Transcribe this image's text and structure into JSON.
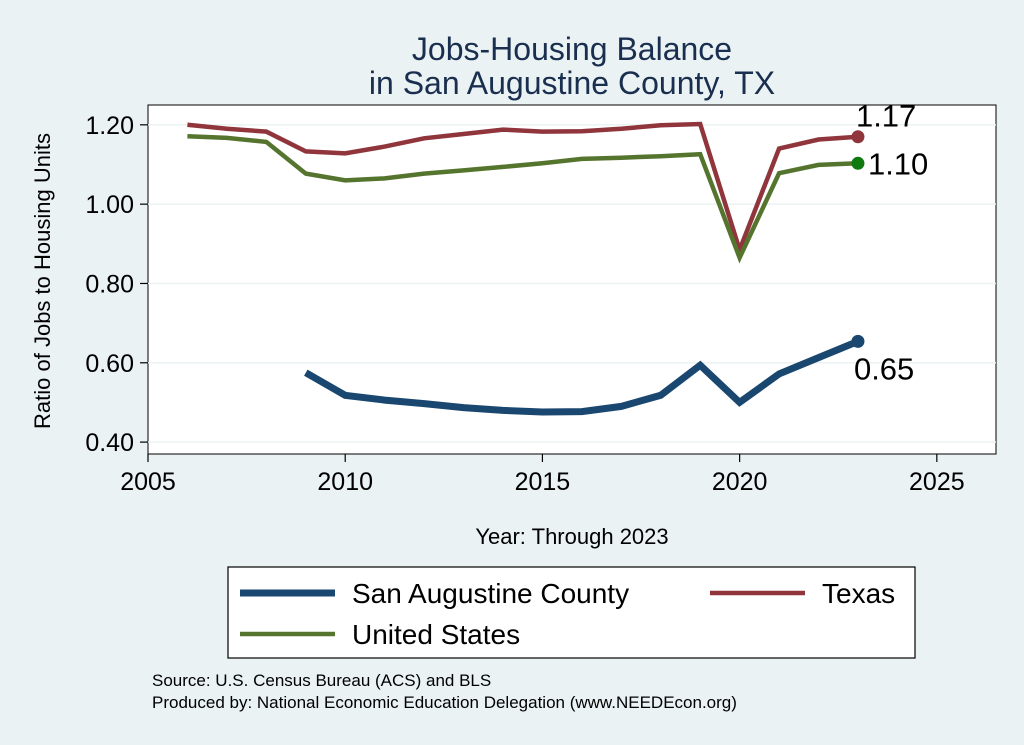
{
  "chart_data": {
    "type": "line",
    "title": [
      "Jobs-Housing Balance",
      "in San Augustine County, TX"
    ],
    "xlabel": "Year: Through 2023",
    "ylabel": "Ratio of Jobs to Housing Units",
    "xlim": [
      2005,
      2026.5
    ],
    "ylim": [
      0.37,
      1.25
    ],
    "xticks": [
      2005,
      2010,
      2015,
      2020,
      2025
    ],
    "yticks": [
      0.4,
      0.6,
      0.8,
      1.0,
      1.2
    ],
    "ytick_labels": [
      "0.40",
      "0.60",
      "0.80",
      "1.00",
      "1.20"
    ],
    "grid": true,
    "legend_position": "bottom",
    "series": [
      {
        "name": "San Augustine County",
        "color": "#1a476f",
        "x": [
          2009,
          2010,
          2011,
          2012,
          2013,
          2014,
          2015,
          2016,
          2017,
          2018,
          2019,
          2020,
          2021,
          2022,
          2023
        ],
        "values": [
          0.575,
          0.518,
          0.506,
          0.497,
          0.487,
          0.48,
          0.476,
          0.477,
          0.49,
          0.518,
          0.594,
          0.5,
          0.572,
          0.613,
          0.654
        ],
        "end_label": "0.65"
      },
      {
        "name": "Texas",
        "color": "#90353b",
        "x": [
          2006,
          2007,
          2008,
          2009,
          2010,
          2011,
          2012,
          2013,
          2014,
          2015,
          2016,
          2017,
          2018,
          2019,
          2020,
          2021,
          2022,
          2023
        ],
        "values": [
          1.2,
          1.19,
          1.183,
          1.133,
          1.128,
          1.145,
          1.166,
          1.177,
          1.188,
          1.183,
          1.184,
          1.19,
          1.199,
          1.202,
          0.885,
          1.14,
          1.163,
          1.17
        ],
        "end_label": "1.17"
      },
      {
        "name": "United States",
        "color": "#55752f",
        "x": [
          2006,
          2007,
          2008,
          2009,
          2010,
          2011,
          2012,
          2013,
          2014,
          2015,
          2016,
          2017,
          2018,
          2019,
          2020,
          2021,
          2022,
          2023
        ],
        "values": [
          1.171,
          1.167,
          1.157,
          1.077,
          1.06,
          1.065,
          1.077,
          1.085,
          1.094,
          1.103,
          1.114,
          1.117,
          1.121,
          1.126,
          0.865,
          1.078,
          1.099,
          1.103
        ],
        "end_label": "1.10",
        "end_marker_color": "#0f7a0f"
      }
    ],
    "legend_order": [
      "San Augustine County",
      "Texas",
      "United States"
    ]
  },
  "notes": {
    "source": "Source: U.S. Census Bureau (ACS) and BLS",
    "produced_by": "Produced by: National Economic Education Delegation (www.NEEDEcon.org)"
  }
}
